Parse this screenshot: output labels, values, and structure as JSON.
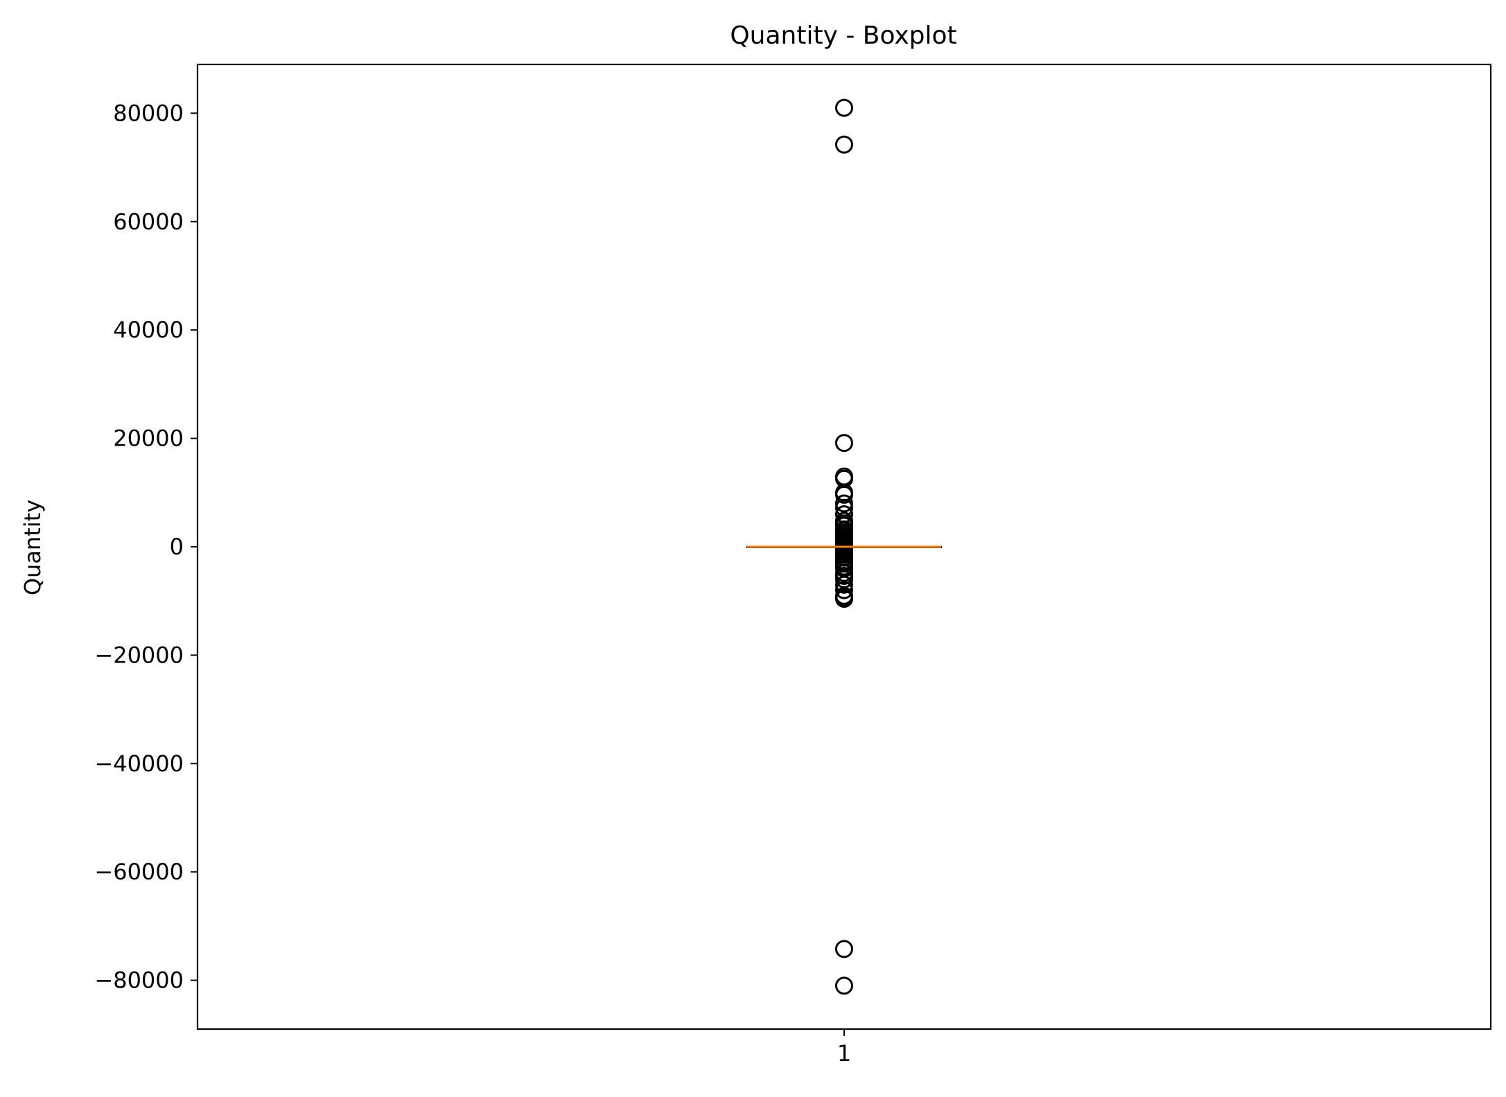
{
  "chart_data": {
    "type": "boxplot",
    "title": "Quantity - Boxplot",
    "xlabel": "",
    "ylabel": "Quantity",
    "ylim": [
      -89000,
      89000
    ],
    "yticks": [
      -80000,
      -60000,
      -40000,
      -20000,
      0,
      20000,
      40000,
      60000,
      80000
    ],
    "ytick_labels": [
      "−80000",
      "−60000",
      "−40000",
      "−20000",
      "0",
      "20000",
      "40000",
      "60000",
      "80000"
    ],
    "categories": [
      "1"
    ],
    "boxes": [
      {
        "name": "1",
        "whisker_low": -60,
        "q1": 1,
        "median": 3,
        "q3": 10,
        "whisker_high": 60,
        "outliers": [
          80995,
          74215,
          19152,
          12960,
          12540,
          10000,
          9600,
          8000,
          7200,
          6000,
          4800,
          4300,
          3906,
          3200,
          3000,
          2600,
          2400,
          2000,
          1600,
          1500,
          1200,
          1000,
          800,
          600,
          400,
          200,
          -200,
          -400,
          -600,
          -800,
          -1000,
          -1200,
          -1500,
          -1930,
          -2000,
          -2600,
          -3000,
          -3114,
          -3667,
          -4000,
          -4830,
          -5368,
          -6000,
          -7000,
          -8000,
          -9058,
          -9360,
          -9600,
          -74215,
          -80995
        ]
      }
    ],
    "grid": false,
    "median_color": "#ff7f0e",
    "box_color": "#000000"
  }
}
